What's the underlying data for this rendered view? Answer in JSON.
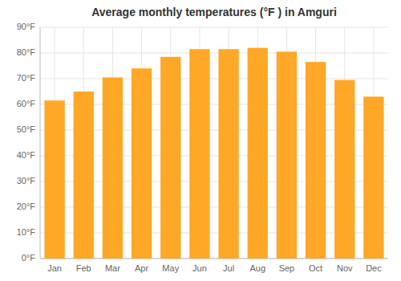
{
  "chart_data": {
    "type": "bar",
    "title": "Average monthly temperatures (°F ) in Amguri",
    "categories": [
      "Jan",
      "Feb",
      "Mar",
      "Apr",
      "May",
      "Jun",
      "Jul",
      "Aug",
      "Sep",
      "Oct",
      "Nov",
      "Dec"
    ],
    "values": [
      61.5,
      65.0,
      70.5,
      74.0,
      78.5,
      81.5,
      81.5,
      82.0,
      80.5,
      76.5,
      69.5,
      63.0
    ],
    "color": "#FFA726",
    "ylim": [
      0,
      90
    ],
    "yticks": [
      {
        "value": 0,
        "label": "0°F"
      },
      {
        "value": 10,
        "label": "10°F"
      },
      {
        "value": 20,
        "label": "20°F"
      },
      {
        "value": 30,
        "label": "30°F"
      },
      {
        "value": 40,
        "label": "40°F"
      },
      {
        "value": 50,
        "label": "50°F"
      },
      {
        "value": 60,
        "label": "60°F"
      },
      {
        "value": 70,
        "label": "70°F"
      },
      {
        "value": 80,
        "label": "80°F"
      },
      {
        "value": 90,
        "label": "90°F"
      }
    ],
    "grid": true
  }
}
